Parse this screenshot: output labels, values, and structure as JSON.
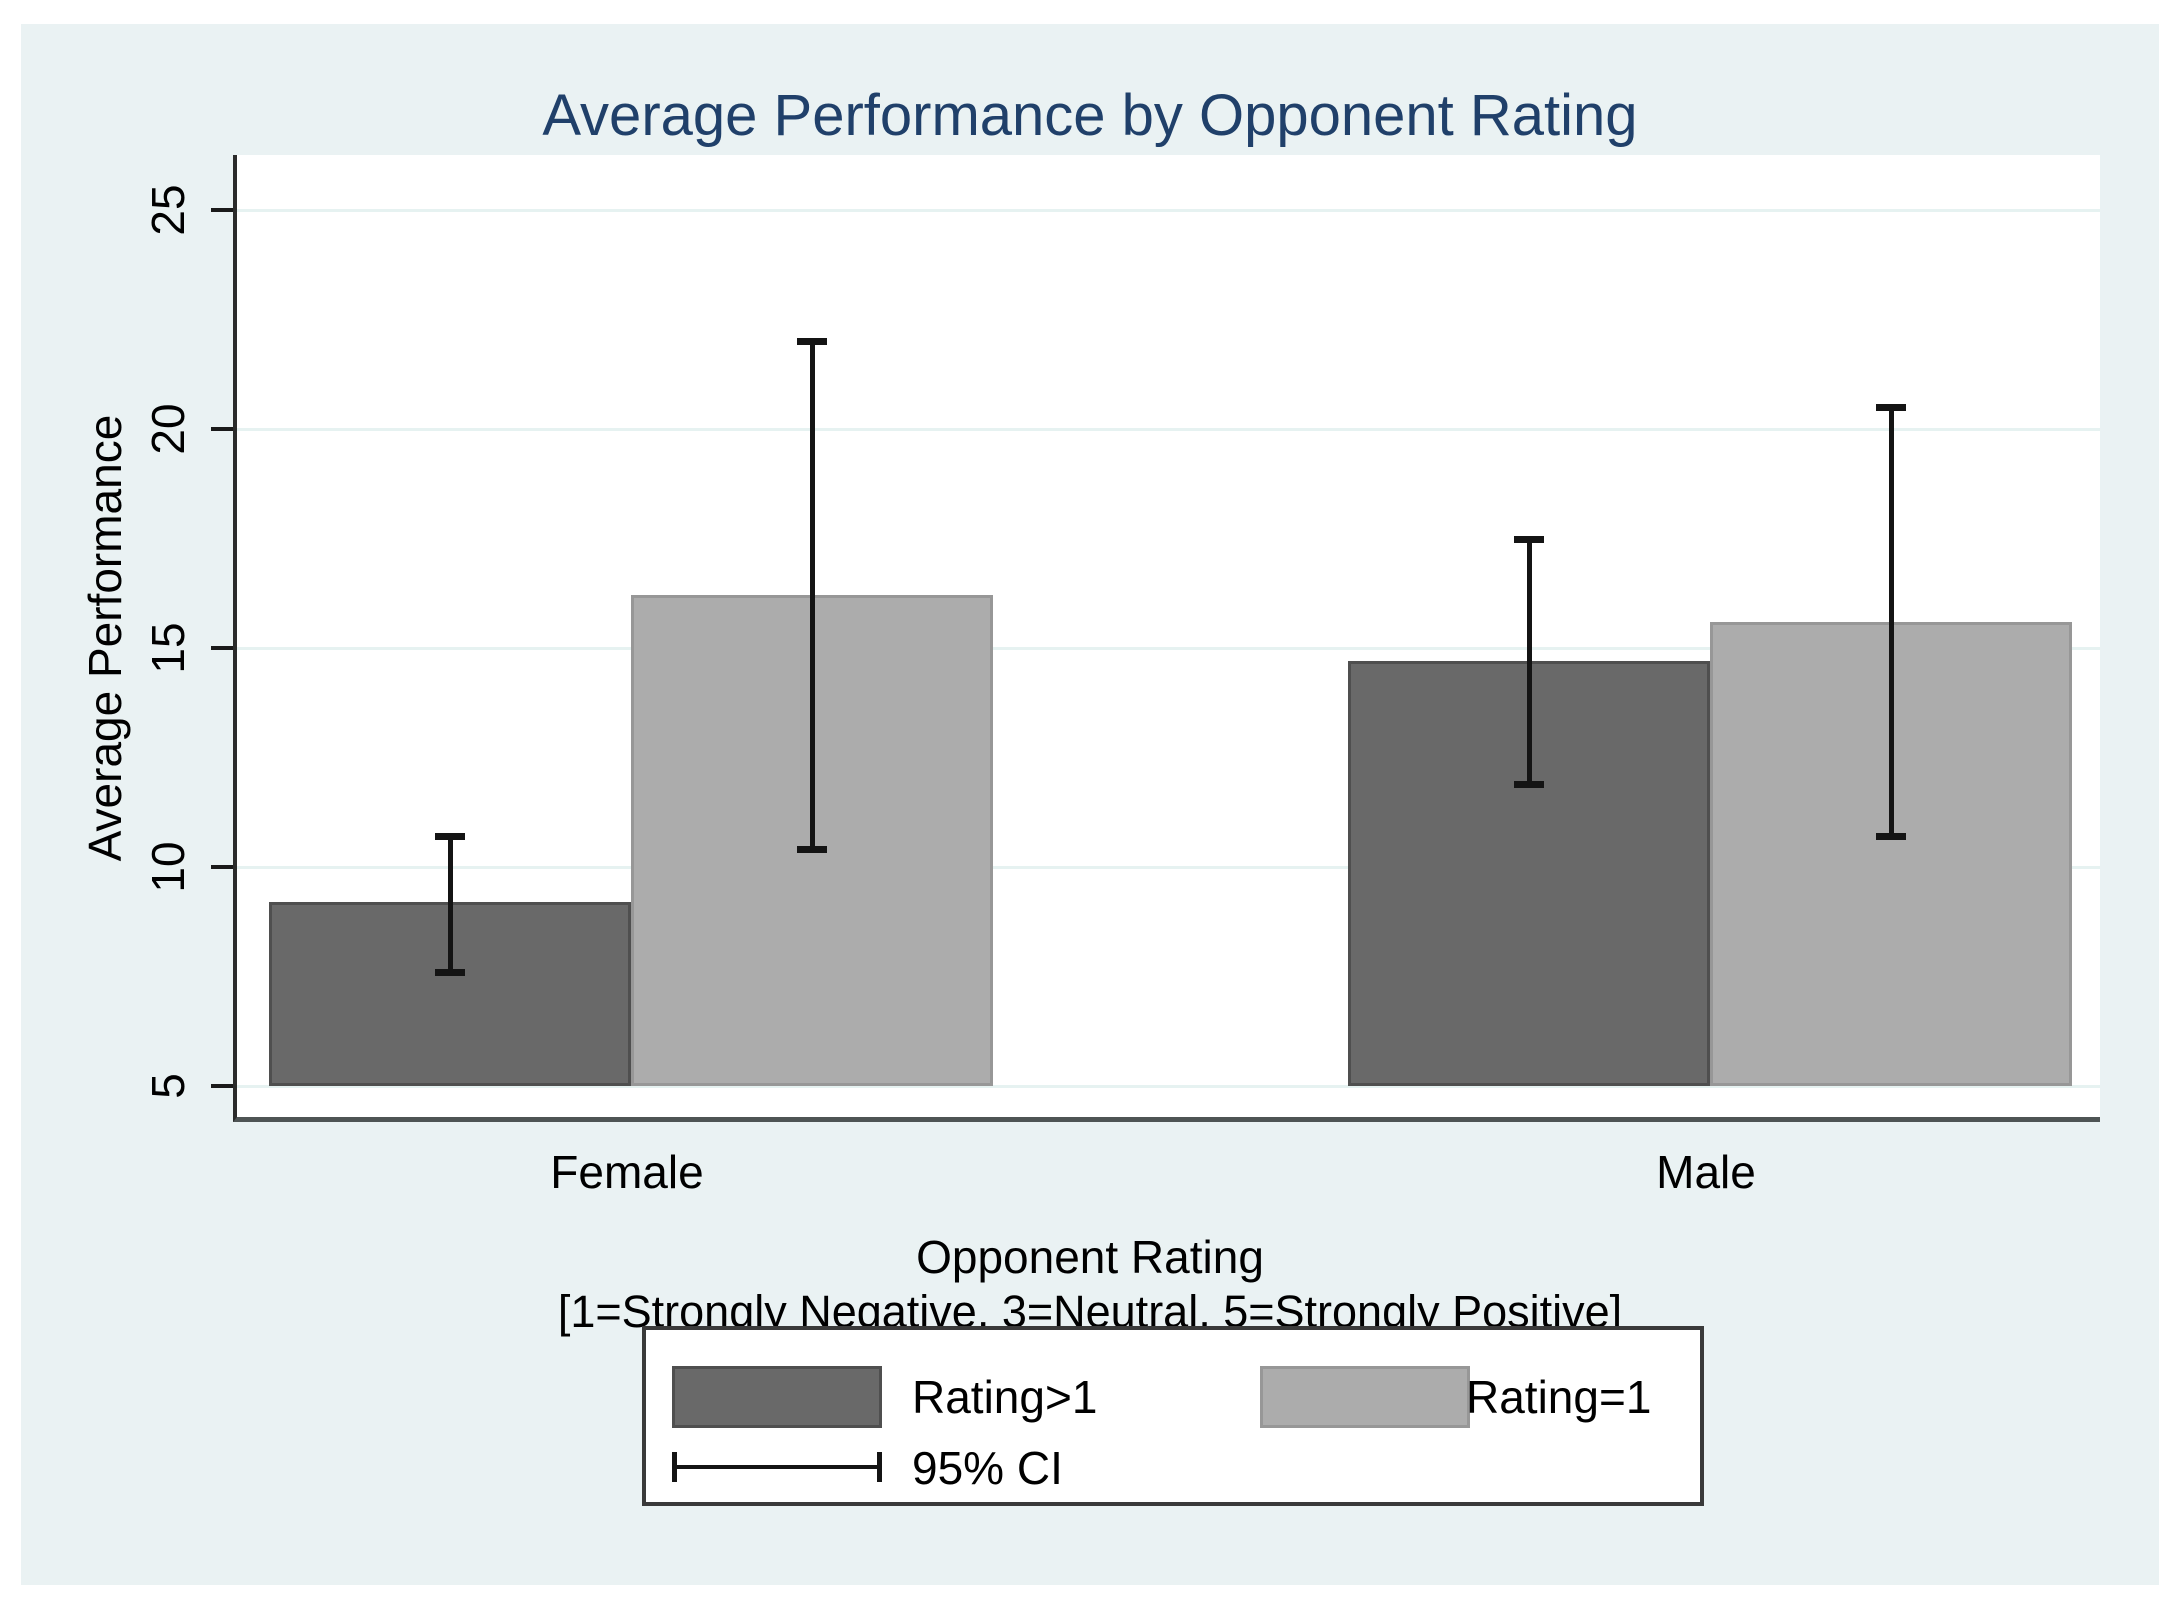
{
  "title": "Average Performance by Opponent Rating",
  "chart_data": {
    "type": "bar",
    "title": "Average Performance by Opponent Rating",
    "categories": [
      "Female",
      "Male"
    ],
    "series": [
      {
        "name": "Rating>1",
        "values": [
          9.2,
          14.7
        ],
        "ci_low": [
          7.6,
          11.9
        ],
        "ci_high": [
          10.7,
          17.5
        ],
        "fill": "#696969",
        "outline": "#4f4f4f"
      },
      {
        "name": "Rating=1",
        "values": [
          16.2,
          15.6
        ],
        "ci_low": [
          10.4,
          10.7
        ],
        "ci_high": [
          22.0,
          20.5
        ],
        "fill": "#acacac",
        "outline": "#979797"
      }
    ],
    "error_bars": "95% CI",
    "ylabel": "Average Performance",
    "xlabel_line1": "Opponent Rating",
    "xlabel_line2": "[1=Strongly Negative, 3=Neutral, 5=Strongly Positive]",
    "yticks": [
      5,
      10,
      15,
      20,
      25
    ],
    "ylim": [
      4.2,
      26.3
    ],
    "bar_base": 5,
    "grid": true,
    "legend_position": "bottom",
    "legend": {
      "ci_label": "95% CI"
    }
  },
  "colors": {
    "graph_background": "#eaf2f3",
    "plot_background": "#ffffff",
    "gridline": "#e6f2f1",
    "title_text": "#20406a",
    "axis_text": "#000000",
    "error_bar": "#141414"
  }
}
